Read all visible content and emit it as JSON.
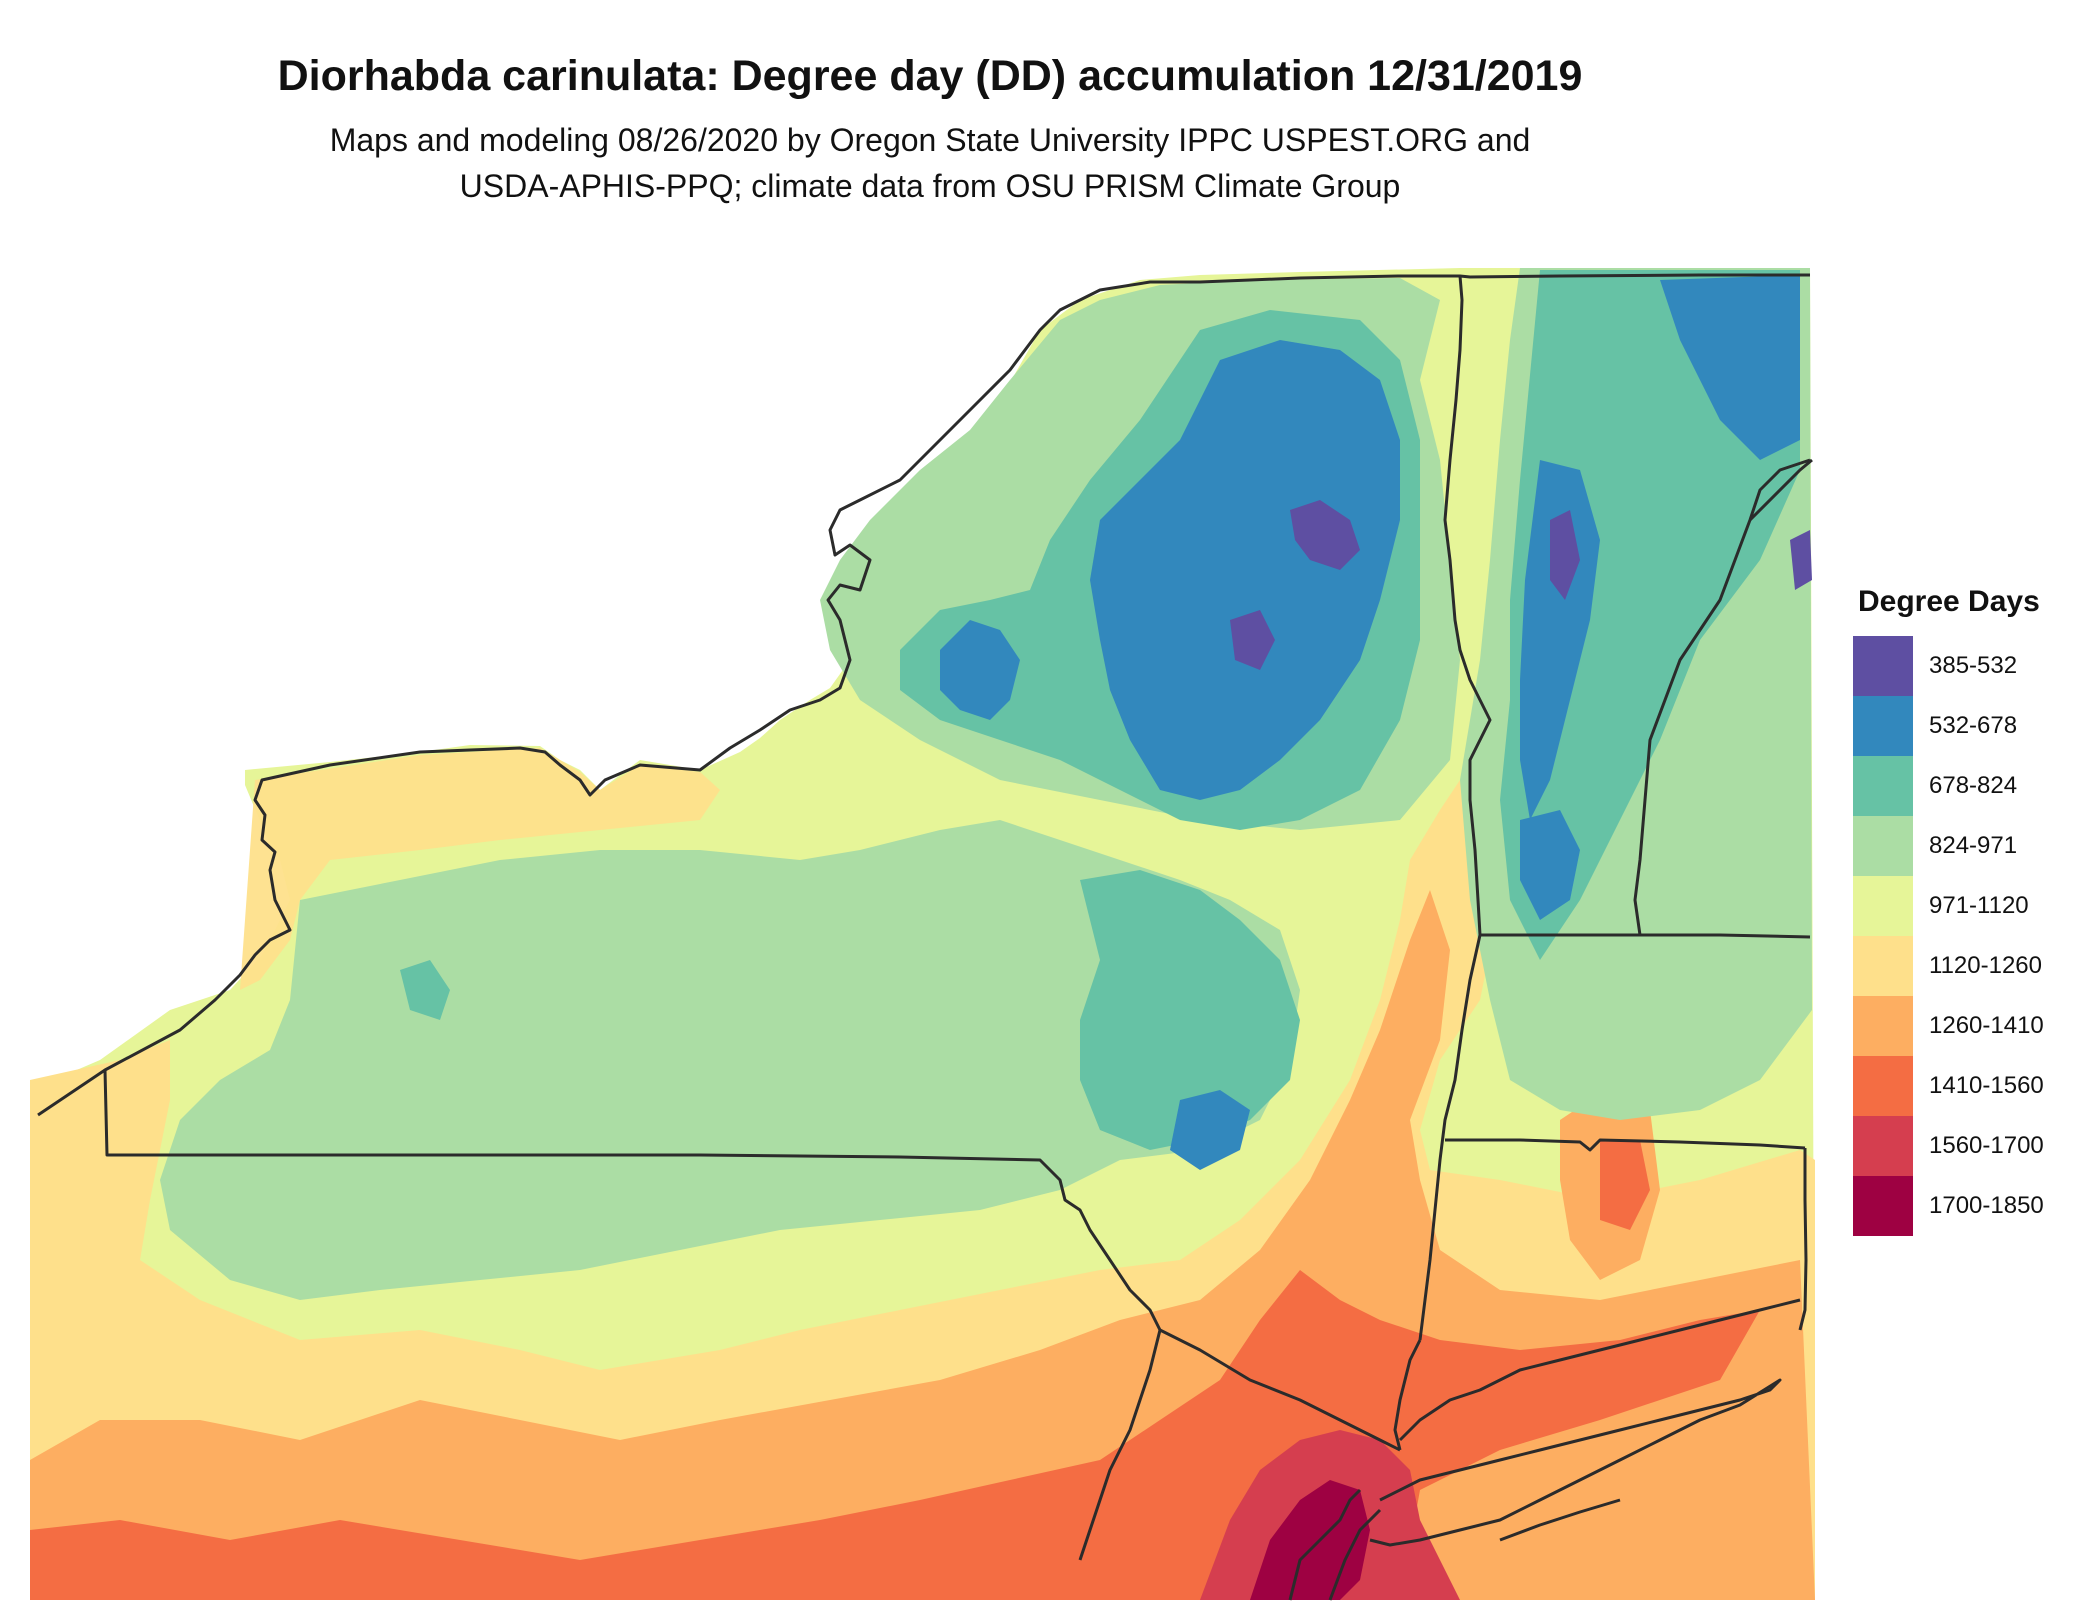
{
  "title": "Diorhabda carinulata: Degree day (DD) accumulation 12/31/2019",
  "subtitle_line1": "Maps and modeling 08/26/2020 by Oregon State University IPPC USPEST.ORG and",
  "subtitle_line2": "USDA-APHIS-PPQ; climate data from OSU PRISM Climate Group",
  "legend": {
    "title": "Degree Days",
    "items": [
      {
        "label": "385-532",
        "color": "#5e4fa2"
      },
      {
        "label": "532-678",
        "color": "#3288bd"
      },
      {
        "label": "678-824",
        "color": "#66c2a5"
      },
      {
        "label": "824-971",
        "color": "#abdda4"
      },
      {
        "label": "971-1120",
        "color": "#e6f598"
      },
      {
        "label": "1120-1260",
        "color": "#fee08b"
      },
      {
        "label": "1260-1410",
        "color": "#fdae61"
      },
      {
        "label": "1410-1560",
        "color": "#f46d43"
      },
      {
        "label": "1560-1700",
        "color": "#d53e4f"
      },
      {
        "label": "1700-1850",
        "color": "#9e0142"
      }
    ]
  },
  "map": {
    "region": "New York and surrounding states",
    "border_color": "#2b2b2b"
  }
}
